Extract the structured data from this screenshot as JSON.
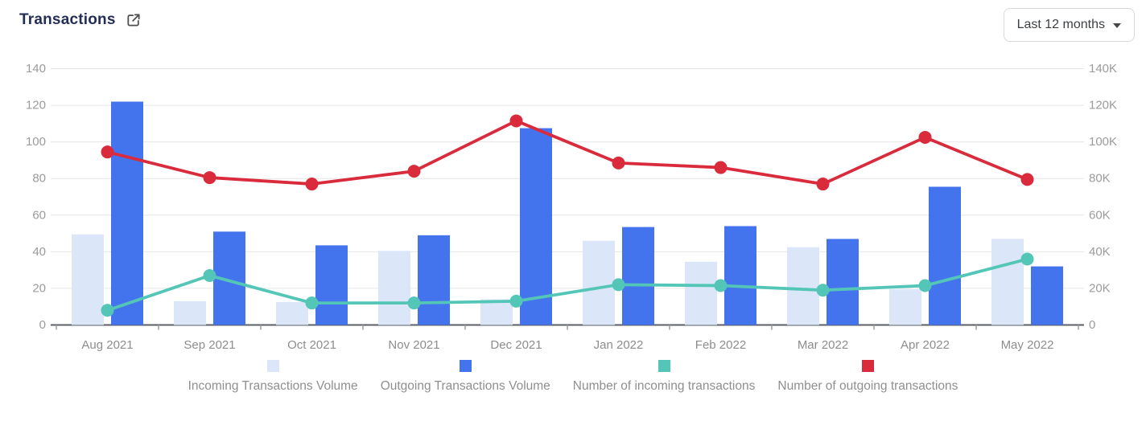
{
  "header": {
    "title": "Transactions"
  },
  "controls": {
    "time_range": {
      "value": "Last 12 months"
    }
  },
  "chart_data": {
    "type": "combo-bar-line",
    "categories": [
      "Aug 2021",
      "Sep 2021",
      "Oct 2021",
      "Nov 2021",
      "Dec 2021",
      "Jan 2022",
      "Feb 2022",
      "Mar 2022",
      "Apr 2022",
      "May 2022"
    ],
    "axes": {
      "left": {
        "min": 0,
        "max": 140,
        "tick_step": 20
      },
      "right": {
        "min": 0,
        "max": 140,
        "tick_step": 20,
        "unit": "K"
      },
      "ticks": [
        {
          "value": 0,
          "left_label": "0",
          "right_label": "0"
        },
        {
          "value": 20,
          "left_label": "20",
          "right_label": "20K"
        },
        {
          "value": 40,
          "left_label": "40",
          "right_label": "40K"
        },
        {
          "value": 60,
          "left_label": "60",
          "right_label": "60K"
        },
        {
          "value": 80,
          "left_label": "80",
          "right_label": "80K"
        },
        {
          "value": 100,
          "left_label": "100",
          "right_label": "100K"
        },
        {
          "value": 120,
          "left_label": "120",
          "right_label": "120K"
        },
        {
          "value": 140,
          "left_label": "140",
          "right_label": "140K"
        }
      ]
    },
    "grid": true,
    "legend_position": "bottom",
    "series": [
      {
        "name": "Incoming Transactions Volume",
        "type": "bar",
        "axis": "right",
        "color": "#dbe6f9",
        "values": [
          49.5,
          13,
          12.5,
          40.5,
          14,
          46,
          34.5,
          42.5,
          19.5,
          47
        ]
      },
      {
        "name": "Outgoing Transactions Volume",
        "type": "bar",
        "axis": "right",
        "color": "#4473ee",
        "values": [
          122,
          51,
          43.5,
          49,
          107.5,
          53.5,
          54,
          47,
          75.5,
          32
        ]
      },
      {
        "name": "Number of incoming transactions",
        "type": "line",
        "axis": "left",
        "color": "#53c6b7",
        "values": [
          8,
          27,
          12,
          12,
          13,
          22,
          21.5,
          19,
          21.5,
          36
        ]
      },
      {
        "name": "Number of outgoing transactions",
        "type": "line",
        "axis": "left",
        "color": "#d92b3c",
        "values": [
          94.5,
          80.5,
          77,
          84,
          111.5,
          88.5,
          86,
          77,
          102.5,
          79.5
        ]
      }
    ],
    "style": {
      "gridline_color": "#e6e6e6",
      "zero_line_color": "#5b5e63",
      "tick_color": "#9e9e9e",
      "axis_text_color": "#9b9b9b",
      "x_label_color": "#8d8d8d"
    }
  }
}
